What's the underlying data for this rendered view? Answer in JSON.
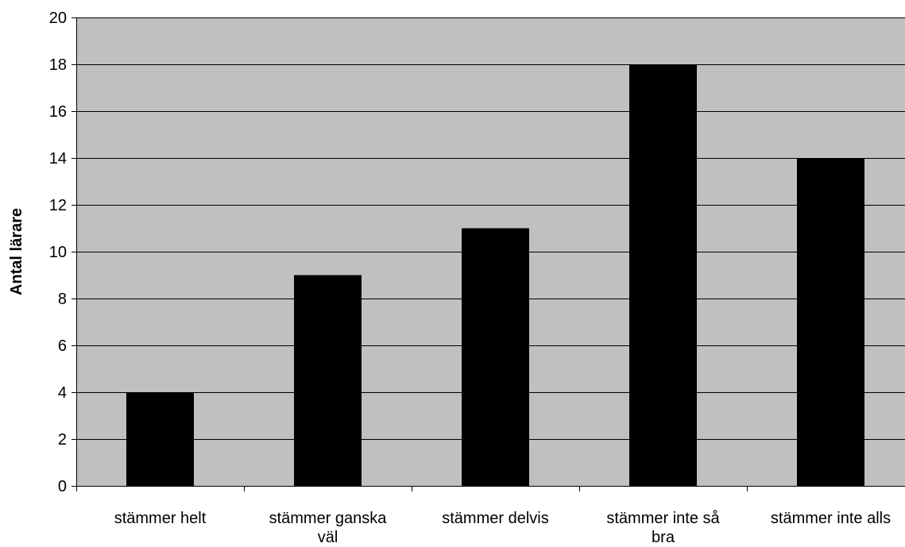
{
  "chart_data": {
    "type": "bar",
    "title": "",
    "xlabel": "",
    "ylabel": "Antal lärare",
    "ylim": [
      0,
      20
    ],
    "yticks": [
      0,
      2,
      4,
      6,
      8,
      10,
      12,
      14,
      16,
      18,
      20
    ],
    "grid": true,
    "categories": [
      [
        "stämmer helt"
      ],
      [
        "stämmer ganska",
        "väl"
      ],
      [
        "stämmer delvis"
      ],
      [
        "stämmer inte så",
        "bra"
      ],
      [
        "stämmer inte alls"
      ]
    ],
    "values": [
      4,
      9,
      11,
      18,
      14
    ],
    "colors": {
      "plot_background": "#c0c0c0",
      "bar_fill": "#000000",
      "gridline": "#000000",
      "axis": "#000000"
    }
  }
}
